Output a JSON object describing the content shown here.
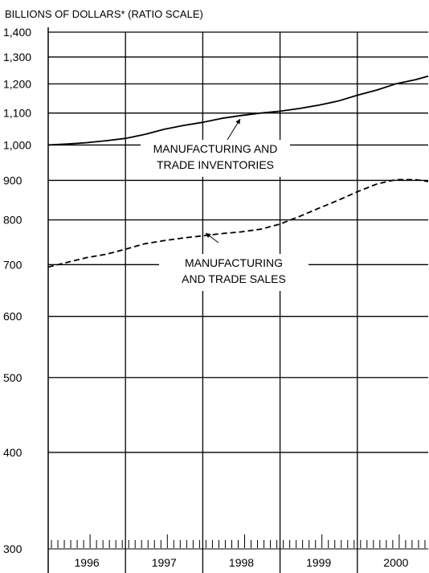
{
  "chart_data": {
    "type": "line",
    "title": "BILLIONS OF DOLLARS* (RATIO SCALE)",
    "yscale": "log",
    "ylim": [
      300,
      1400
    ],
    "yticks": [
      300,
      400,
      500,
      600,
      700,
      800,
      900,
      1000,
      1100,
      1200,
      1300,
      1400
    ],
    "ytick_labels": [
      "300",
      "400",
      "500",
      "600",
      "700",
      "800",
      "900",
      "1,000",
      "1,100",
      "1,200",
      "1,300",
      "1,400"
    ],
    "xlim": [
      1996.0,
      2000.917
    ],
    "year_labels": [
      "1996",
      "1997",
      "1998",
      "1999",
      "2000"
    ],
    "grid": true,
    "series": [
      {
        "name": "MANUFACTURING AND TRADE INVENTORIES",
        "style": "solid",
        "x": [
          1996.0,
          1996.25,
          1996.5,
          1996.75,
          1997.0,
          1997.25,
          1997.5,
          1997.75,
          1998.0,
          1998.25,
          1998.5,
          1998.75,
          1999.0,
          1999.25,
          1999.5,
          1999.75,
          2000.0,
          2000.25,
          2000.5,
          2000.75,
          2000.917
        ],
        "values": [
          1000,
          1003,
          1007,
          1013,
          1020,
          1032,
          1048,
          1060,
          1070,
          1083,
          1092,
          1100,
          1106,
          1115,
          1126,
          1140,
          1160,
          1178,
          1200,
          1215,
          1228
        ]
      },
      {
        "name": "MANUFACTURING AND TRADE SALES",
        "style": "dashed",
        "x": [
          1996.0,
          1996.25,
          1996.5,
          1996.75,
          1997.0,
          1997.25,
          1997.5,
          1997.75,
          1998.0,
          1998.25,
          1998.5,
          1998.75,
          1999.0,
          1999.25,
          1999.5,
          1999.75,
          2000.0,
          2000.25,
          2000.5,
          2000.75,
          2000.917
        ],
        "values": [
          695,
          705,
          715,
          722,
          733,
          745,
          752,
          758,
          763,
          768,
          772,
          778,
          790,
          808,
          828,
          848,
          870,
          890,
          902,
          902,
          897
        ]
      }
    ],
    "annotations": [
      {
        "lines": [
          "MANUFACTURING AND",
          "TRADE INVENTORIES"
        ]
      },
      {
        "lines": [
          "MANUFACTURING",
          "AND TRADE SALES"
        ]
      }
    ]
  }
}
